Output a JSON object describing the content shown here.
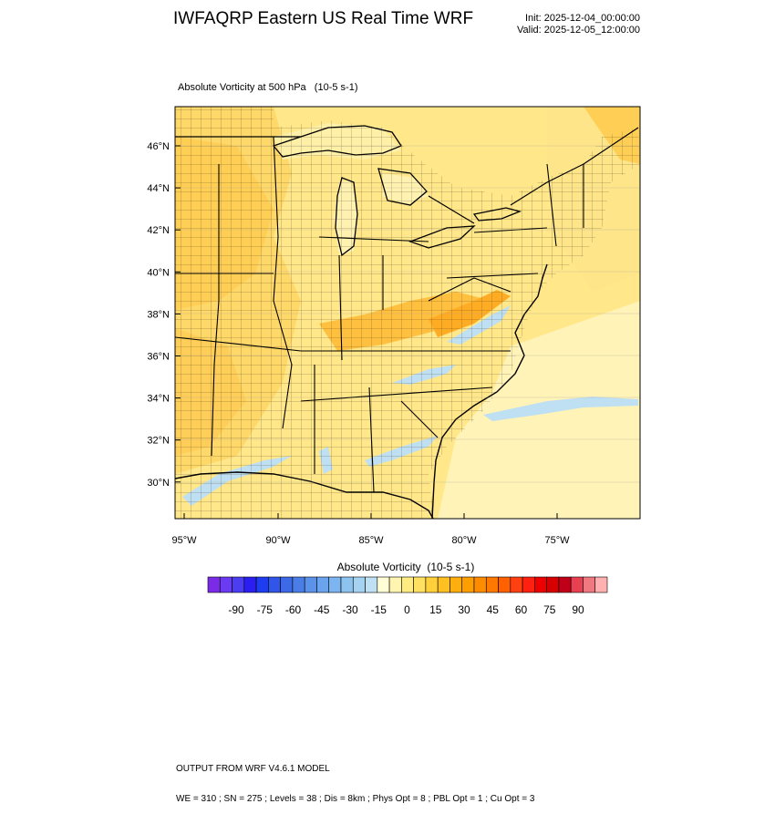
{
  "header": {
    "title": "IWFAQRP Eastern US Real Time WRF",
    "init": "Init: 2025-12-04_00:00:00",
    "valid": "Valid: 2025-12-05_12:00:00"
  },
  "plot": {
    "subtitle": "Absolute Vorticity at 500 hPa   (10-5 s-1)",
    "lat_labels": [
      "46°N",
      "44°N",
      "42°N",
      "40°N",
      "38°N",
      "36°N",
      "34°N",
      "32°N",
      "30°N"
    ],
    "lon_labels": [
      "95°W",
      "90°W",
      "85°W",
      "80°W",
      "75°W"
    ]
  },
  "colorbar": {
    "title": "Absolute Vorticity  (10-5 s-1)",
    "labels": [
      "-90",
      "-75",
      "-60",
      "-45",
      "-30",
      "-15",
      "0",
      "15",
      "30",
      "45",
      "60",
      "75",
      "90"
    ],
    "colors": [
      "#7b2be6",
      "#6a3bf0",
      "#4b3df2",
      "#2a1ff0",
      "#1e3df0",
      "#2f56e8",
      "#3d68e6",
      "#4a7de6",
      "#5c93ea",
      "#6aa4ee",
      "#7cb5f0",
      "#8dc3ef",
      "#a5d2ef",
      "#bfe0f2",
      "#fffcd6",
      "#fff5b0",
      "#ffec80",
      "#ffe060",
      "#ffd03a",
      "#ffc020",
      "#ffae10",
      "#ff9e00",
      "#ff8c00",
      "#ff7800",
      "#ff6000",
      "#ff4010",
      "#ff2010",
      "#ee0000",
      "#d60000",
      "#c00018",
      "#e84050",
      "#f07880",
      "#ffb0b0"
    ]
  },
  "footer": {
    "line1": "OUTPUT FROM WRF V4.6.1 MODEL",
    "line2": "WE = 310 ; SN = 275 ; Levels = 38 ; Dis = 8km ; Phys Opt = 8 ; PBL Opt = 1 ; Cu Opt = 3"
  }
}
